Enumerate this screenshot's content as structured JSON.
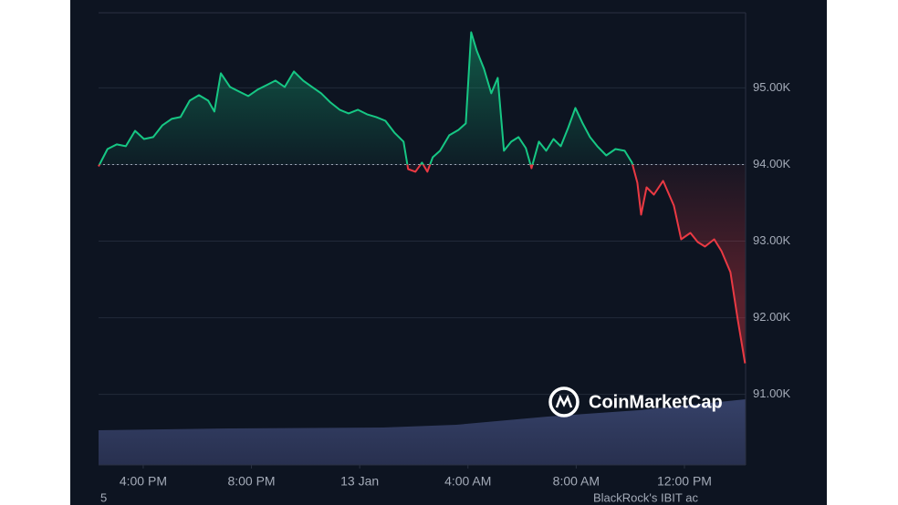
{
  "chart_data": {
    "type": "line",
    "x": [
      14.35,
      14.68,
      15.02,
      15.36,
      15.7,
      16.03,
      16.37,
      16.71,
      17.05,
      17.38,
      17.72,
      18.06,
      18.4,
      18.63,
      18.87,
      19.21,
      19.54,
      19.88,
      20.22,
      20.56,
      20.89,
      21.23,
      21.57,
      21.91,
      22.24,
      22.58,
      22.92,
      23.26,
      23.59,
      23.93,
      24.27,
      24.61,
      24.95,
      25.28,
      25.62,
      25.79,
      26.06,
      26.3,
      26.5,
      26.7,
      26.97,
      27.31,
      27.65,
      27.92,
      28.12,
      28.32,
      28.59,
      28.86,
      29.1,
      29.33,
      29.6,
      29.87,
      30.14,
      30.35,
      30.62,
      30.89,
      31.16,
      31.43,
      31.7,
      31.97,
      32.24,
      32.51,
      32.78,
      33.11,
      33.45,
      33.79,
      34.06,
      34.26,
      34.4,
      34.6,
      34.87,
      35.21,
      35.61,
      35.88,
      36.22,
      36.49,
      36.76,
      37.1,
      37.37,
      37.7,
      37.97,
      38.24
    ],
    "values": [
      93976,
      94202,
      94262,
      94238,
      94440,
      94333,
      94357,
      94512,
      94595,
      94619,
      94833,
      94905,
      94833,
      94690,
      95190,
      95012,
      94952,
      94893,
      94976,
      95036,
      95095,
      95012,
      95214,
      95095,
      95012,
      94929,
      94810,
      94714,
      94667,
      94714,
      94655,
      94619,
      94571,
      94417,
      94298,
      93940,
      93905,
      94024,
      93905,
      94095,
      94179,
      94381,
      94452,
      94536,
      95726,
      95488,
      95250,
      94929,
      95131,
      94179,
      94298,
      94357,
      94214,
      93952,
      94298,
      94179,
      94333,
      94238,
      94476,
      94738,
      94536,
      94357,
      94238,
      94119,
      94202,
      94179,
      94024,
      93762,
      93345,
      93702,
      93607,
      93786,
      93464,
      93024,
      93107,
      92988,
      92929,
      93024,
      92869,
      92595,
      91976,
      91405
    ],
    "baseline": 94000,
    "up_color": "#16c784",
    "down_color": "#ea3943",
    "xlim": [
      14.35,
      38.26
    ],
    "xticks": [
      {
        "value": 16,
        "label": "4:00 PM"
      },
      {
        "value": 20,
        "label": "8:00 PM"
      },
      {
        "value": 24,
        "label": "13 Jan"
      },
      {
        "value": 28,
        "label": "4:00 AM"
      },
      {
        "value": 32,
        "label": "8:00 AM"
      },
      {
        "value": 36,
        "label": "12:00 PM"
      }
    ],
    "ylim": [
      90080,
      95980
    ],
    "yticks": [
      {
        "value": 91000,
        "label": "91.00K"
      },
      {
        "value": 92000,
        "label": "92.00K"
      },
      {
        "value": 93000,
        "label": "93.00K"
      },
      {
        "value": 94000,
        "label": "94.00K"
      },
      {
        "value": 95000,
        "label": "95.00K"
      }
    ],
    "grid": true,
    "watermark": "CoinMarketCap",
    "footer_texts": [
      "5",
      "BlackRock's IBIT ac"
    ]
  }
}
